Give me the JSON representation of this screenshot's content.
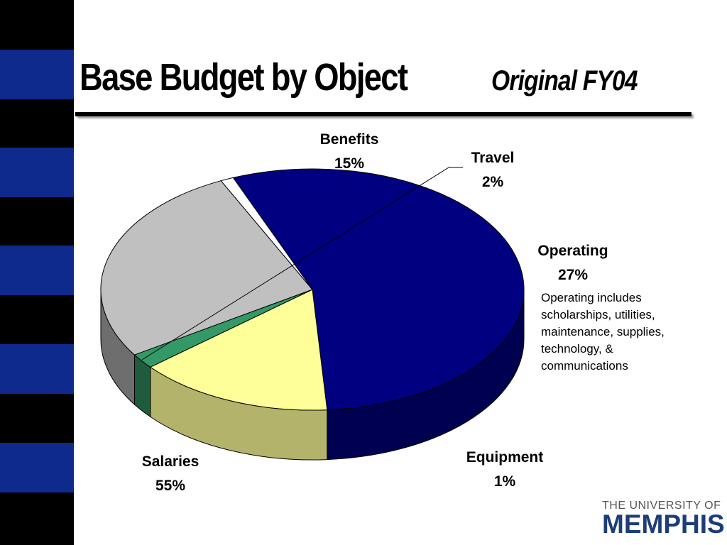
{
  "slide": {
    "title_main": "Base Budget by Object",
    "title_sub": "Original FY04",
    "note": "Operating includes scholarships, utilities, maintenance, supplies, technology, & communications",
    "logo_top": "THE UNIVERSITY OF",
    "logo_bottom": "MEMPHIS",
    "sidebar_colors": {
      "dark": "#000000",
      "blue": "#0d2a8c"
    }
  },
  "chart_data": {
    "type": "pie",
    "title": "",
    "style": "3d",
    "slices": [
      {
        "label": "Salaries",
        "value": 55,
        "value_label": "55%",
        "color": "#000080",
        "side_color": "#000050"
      },
      {
        "label": "Benefits",
        "value": 15,
        "value_label": "15%",
        "color": "#ffff99",
        "side_color": "#b3b36b"
      },
      {
        "label": "Travel",
        "value": 2,
        "value_label": "2%",
        "color": "#339966",
        "side_color": "#1f5c3d"
      },
      {
        "label": "Operating",
        "value": 27,
        "value_label": "27%",
        "color": "#c0c0c0",
        "side_color": "#6e6e6e"
      },
      {
        "label": "Equipment",
        "value": 1,
        "value_label": "1%",
        "color": "#ffffff",
        "side_color": "#999999"
      }
    ],
    "legend": "none"
  }
}
